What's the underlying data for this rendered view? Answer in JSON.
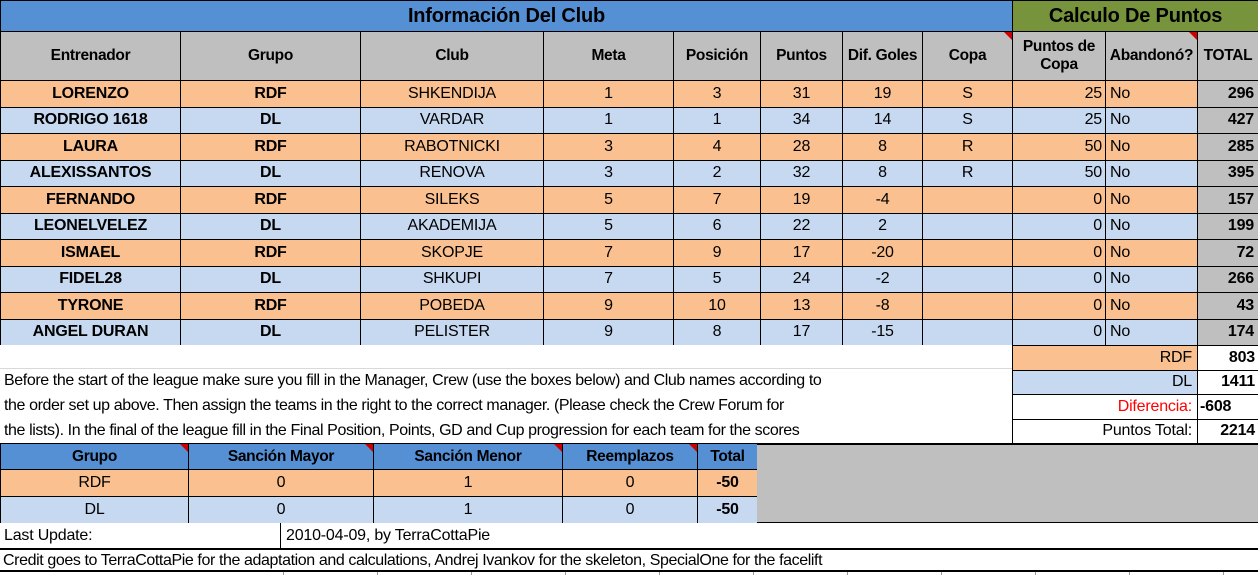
{
  "header": {
    "info_title": "Información Del Club",
    "calc_title": "Calculo De Puntos",
    "columns": [
      "Entrenador",
      "Grupo",
      "Club",
      "Meta",
      "Posición",
      "Puntos",
      "Dif. Goles",
      "Copa",
      "Puntos de Copa",
      "Abandonó?",
      "TOTAL"
    ]
  },
  "main_table": {
    "rows": [
      {
        "entrenador": "LORENZO",
        "grupo": "RDF",
        "club": "SHKENDIJA",
        "meta": "1",
        "posicion": "3",
        "puntos": "31",
        "dif_goles": "19",
        "copa": "S",
        "puntos_copa": "25",
        "abandono": "No",
        "total": "296"
      },
      {
        "entrenador": "RODRIGO 1618",
        "grupo": "DL",
        "club": "VARDAR",
        "meta": "1",
        "posicion": "1",
        "puntos": "34",
        "dif_goles": "14",
        "copa": "S",
        "puntos_copa": "25",
        "abandono": "No",
        "total": "427"
      },
      {
        "entrenador": "LAURA",
        "grupo": "RDF",
        "club": "RABOTNICKI",
        "meta": "3",
        "posicion": "4",
        "puntos": "28",
        "dif_goles": "8",
        "copa": "R",
        "puntos_copa": "50",
        "abandono": "No",
        "total": "285"
      },
      {
        "entrenador": "ALEXISSANTOS",
        "grupo": "DL",
        "club": "RENOVA",
        "meta": "3",
        "posicion": "2",
        "puntos": "32",
        "dif_goles": "8",
        "copa": "R",
        "puntos_copa": "50",
        "abandono": "No",
        "total": "395"
      },
      {
        "entrenador": "FERNANDO",
        "grupo": "RDF",
        "club": "SILEKS",
        "meta": "5",
        "posicion": "7",
        "puntos": "19",
        "dif_goles": "-4",
        "copa": "",
        "puntos_copa": "0",
        "abandono": "No",
        "total": "157"
      },
      {
        "entrenador": "LEONELVELEZ",
        "grupo": "DL",
        "club": "AKADEMIJA",
        "meta": "5",
        "posicion": "6",
        "puntos": "22",
        "dif_goles": "2",
        "copa": "",
        "puntos_copa": "0",
        "abandono": "No",
        "total": "199"
      },
      {
        "entrenador": "ISMAEL",
        "grupo": "RDF",
        "club": "SKOPJE",
        "meta": "7",
        "posicion": "9",
        "puntos": "17",
        "dif_goles": "-20",
        "copa": "",
        "puntos_copa": "0",
        "abandono": "No",
        "total": "72"
      },
      {
        "entrenador": "FIDEL28",
        "grupo": "DL",
        "club": "SHKUPI",
        "meta": "7",
        "posicion": "5",
        "puntos": "24",
        "dif_goles": "-2",
        "copa": "",
        "puntos_copa": "0",
        "abandono": "No",
        "total": "266"
      },
      {
        "entrenador": "TYRONE",
        "grupo": "RDF",
        "club": "POBEDA",
        "meta": "9",
        "posicion": "10",
        "puntos": "13",
        "dif_goles": "-8",
        "copa": "",
        "puntos_copa": "0",
        "abandono": "No",
        "total": "43"
      },
      {
        "entrenador": "ANGEL DURAN",
        "grupo": "DL",
        "club": "PELISTER",
        "meta": "9",
        "posicion": "8",
        "puntos": "17",
        "dif_goles": "-15",
        "copa": "",
        "puntos_copa": "0",
        "abandono": "No",
        "total": "174"
      }
    ]
  },
  "summary": {
    "rows": [
      {
        "label": "RDF",
        "value": "803"
      },
      {
        "label": "DL",
        "value": "1411"
      },
      {
        "label": "Diferencia:",
        "value": "-608"
      },
      {
        "label": "Puntos Total:",
        "value": "2214"
      }
    ]
  },
  "instructions": {
    "lines": [
      "Before the start of the league make sure you fill in the Manager, Crew (use the boxes below) and Club names according to",
      "the order set up above. Then assign the teams in the right to the correct manager. (Please check the Crew Forum for",
      "the lists). In the final of the league fill in the Final Position, Points, GD and Cup progression for each team for the scores"
    ]
  },
  "sanctions_table": {
    "columns": [
      "Grupo",
      "Sanción Mayor",
      "Sanción Menor",
      "Reemplazos",
      "Total"
    ],
    "rows": [
      [
        "RDF",
        "0",
        "1",
        "0",
        "-50"
      ],
      [
        "DL",
        "0",
        "1",
        "0",
        "-50"
      ]
    ]
  },
  "footer": {
    "last_update_label": "Last Update:",
    "last_update_value": "2010-04-09, by TerraCottaPie",
    "credit": "Credit goes to TerraCottaPie for the adaptation and calculations, Andrej Ivankov for the skeleton, SpecialOne for the facelift"
  },
  "colors": {
    "header_blue": "#5590D5",
    "header_green": "#77933C",
    "row_orange": "#FAC08F",
    "row_light_blue": "#C6D9F1",
    "gray_cell": "#BFBFBF",
    "diferencia_red": "#FF0000",
    "comment_indicator_red": "#CC0000"
  }
}
